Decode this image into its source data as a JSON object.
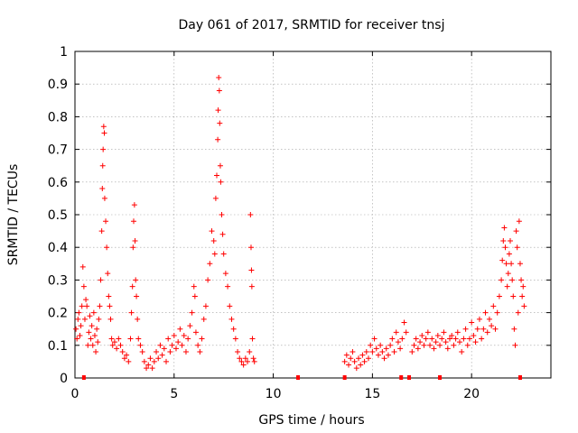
{
  "chart_data": {
    "type": "scatter",
    "title": "Day 061 of 2017, SRMTID for receiver tnsj",
    "xlabel": "GPS time / hours",
    "ylabel": "SRMTID / TECUs",
    "xlim": [
      0,
      24
    ],
    "ylim": [
      0,
      1
    ],
    "xticks": [
      0,
      5,
      10,
      15,
      20
    ],
    "xtick_labels": [
      "0",
      "5",
      "10",
      "15",
      "20"
    ],
    "yticks": [
      0,
      0.1,
      0.2,
      0.3,
      0.4,
      0.5,
      0.6,
      0.7,
      0.8,
      0.9,
      1
    ],
    "ytick_labels": [
      "0",
      "0.1",
      "0.2",
      "0.3",
      "0.4",
      "0.5",
      "0.6",
      "0.7",
      "0.8",
      "0.9",
      "1"
    ],
    "grid": true,
    "marker": "+",
    "color": "#ff0000",
    "series": [
      {
        "name": "SRMTID",
        "points": [
          [
            0.05,
            0.15
          ],
          [
            0.1,
            0.12
          ],
          [
            0.15,
            0.18
          ],
          [
            0.2,
            0.2
          ],
          [
            0.25,
            0.13
          ],
          [
            0.3,
            0.16
          ],
          [
            0.35,
            0.22
          ],
          [
            0.4,
            0.34
          ],
          [
            0.45,
            0.28
          ],
          [
            0.5,
            0.18
          ],
          [
            0.55,
            0.24
          ],
          [
            0.6,
            0.22
          ],
          [
            0.65,
            0.1
          ],
          [
            0.7,
            0.14
          ],
          [
            0.75,
            0.19
          ],
          [
            0.8,
            0.12
          ],
          [
            0.85,
            0.16
          ],
          [
            0.9,
            0.1
          ],
          [
            0.95,
            0.2
          ],
          [
            1.0,
            0.13
          ],
          [
            1.05,
            0.08
          ],
          [
            1.1,
            0.15
          ],
          [
            1.15,
            0.11
          ],
          [
            1.2,
            0.18
          ],
          [
            1.25,
            0.22
          ],
          [
            1.3,
            0.3
          ],
          [
            1.35,
            0.45
          ],
          [
            1.38,
            0.58
          ],
          [
            1.4,
            0.65
          ],
          [
            1.42,
            0.7
          ],
          [
            1.45,
            0.77
          ],
          [
            1.48,
            0.75
          ],
          [
            1.5,
            0.55
          ],
          [
            1.55,
            0.48
          ],
          [
            1.6,
            0.4
          ],
          [
            1.65,
            0.32
          ],
          [
            1.7,
            0.25
          ],
          [
            1.75,
            0.22
          ],
          [
            1.8,
            0.18
          ],
          [
            1.85,
            0.12
          ],
          [
            1.9,
            0.1
          ],
          [
            2.0,
            0.11
          ],
          [
            2.1,
            0.09
          ],
          [
            2.2,
            0.12
          ],
          [
            2.3,
            0.1
          ],
          [
            2.4,
            0.08
          ],
          [
            2.5,
            0.06
          ],
          [
            2.6,
            0.07
          ],
          [
            2.7,
            0.05
          ],
          [
            2.8,
            0.12
          ],
          [
            2.85,
            0.2
          ],
          [
            2.9,
            0.28
          ],
          [
            2.93,
            0.4
          ],
          [
            2.96,
            0.48
          ],
          [
            3.0,
            0.53
          ],
          [
            3.03,
            0.42
          ],
          [
            3.06,
            0.3
          ],
          [
            3.1,
            0.25
          ],
          [
            3.15,
            0.18
          ],
          [
            3.2,
            0.12
          ],
          [
            3.3,
            0.1
          ],
          [
            3.4,
            0.08
          ],
          [
            3.5,
            0.05
          ],
          [
            3.6,
            0.03
          ],
          [
            3.7,
            0.04
          ],
          [
            3.8,
            0.06
          ],
          [
            3.9,
            0.03
          ],
          [
            4.0,
            0.05
          ],
          [
            4.1,
            0.08
          ],
          [
            4.2,
            0.06
          ],
          [
            4.3,
            0.1
          ],
          [
            4.4,
            0.07
          ],
          [
            4.5,
            0.09
          ],
          [
            4.6,
            0.05
          ],
          [
            4.7,
            0.12
          ],
          [
            4.8,
            0.08
          ],
          [
            4.9,
            0.1
          ],
          [
            5.0,
            0.13
          ],
          [
            5.1,
            0.09
          ],
          [
            5.2,
            0.11
          ],
          [
            5.3,
            0.15
          ],
          [
            5.4,
            0.1
          ],
          [
            5.5,
            0.13
          ],
          [
            5.6,
            0.08
          ],
          [
            5.7,
            0.12
          ],
          [
            5.8,
            0.16
          ],
          [
            5.9,
            0.2
          ],
          [
            6.0,
            0.28
          ],
          [
            6.05,
            0.25
          ],
          [
            6.1,
            0.14
          ],
          [
            6.2,
            0.1
          ],
          [
            6.3,
            0.08
          ],
          [
            6.4,
            0.12
          ],
          [
            6.5,
            0.18
          ],
          [
            6.6,
            0.22
          ],
          [
            6.7,
            0.3
          ],
          [
            6.8,
            0.35
          ],
          [
            6.9,
            0.45
          ],
          [
            7.0,
            0.42
          ],
          [
            7.05,
            0.38
          ],
          [
            7.1,
            0.55
          ],
          [
            7.15,
            0.62
          ],
          [
            7.2,
            0.73
          ],
          [
            7.22,
            0.82
          ],
          [
            7.25,
            0.92
          ],
          [
            7.28,
            0.88
          ],
          [
            7.3,
            0.78
          ],
          [
            7.33,
            0.65
          ],
          [
            7.35,
            0.6
          ],
          [
            7.4,
            0.5
          ],
          [
            7.45,
            0.44
          ],
          [
            7.5,
            0.38
          ],
          [
            7.6,
            0.32
          ],
          [
            7.7,
            0.28
          ],
          [
            7.8,
            0.22
          ],
          [
            7.9,
            0.18
          ],
          [
            8.0,
            0.15
          ],
          [
            8.1,
            0.12
          ],
          [
            8.2,
            0.08
          ],
          [
            8.3,
            0.06
          ],
          [
            8.4,
            0.05
          ],
          [
            8.5,
            0.04
          ],
          [
            8.6,
            0.06
          ],
          [
            8.7,
            0.05
          ],
          [
            8.8,
            0.08
          ],
          [
            8.85,
            0.5
          ],
          [
            8.88,
            0.4
          ],
          [
            8.9,
            0.33
          ],
          [
            8.92,
            0.28
          ],
          [
            8.95,
            0.12
          ],
          [
            9.0,
            0.06
          ],
          [
            9.05,
            0.05
          ],
          [
            13.6,
            0.05
          ],
          [
            13.7,
            0.07
          ],
          [
            13.8,
            0.04
          ],
          [
            13.9,
            0.06
          ],
          [
            14.0,
            0.08
          ],
          [
            14.1,
            0.05
          ],
          [
            14.2,
            0.03
          ],
          [
            14.3,
            0.06
          ],
          [
            14.4,
            0.04
          ],
          [
            14.5,
            0.07
          ],
          [
            14.6,
            0.05
          ],
          [
            14.7,
            0.08
          ],
          [
            14.8,
            0.06
          ],
          [
            14.9,
            0.1
          ],
          [
            15.0,
            0.08
          ],
          [
            15.1,
            0.12
          ],
          [
            15.2,
            0.09
          ],
          [
            15.3,
            0.07
          ],
          [
            15.4,
            0.1
          ],
          [
            15.5,
            0.08
          ],
          [
            15.6,
            0.06
          ],
          [
            15.7,
            0.09
          ],
          [
            15.8,
            0.07
          ],
          [
            15.9,
            0.1
          ],
          [
            16.0,
            0.12
          ],
          [
            16.1,
            0.08
          ],
          [
            16.2,
            0.14
          ],
          [
            16.3,
            0.11
          ],
          [
            16.4,
            0.09
          ],
          [
            16.5,
            0.12
          ],
          [
            16.6,
            0.17
          ],
          [
            16.7,
            0.14
          ],
          [
            17.0,
            0.08
          ],
          [
            17.1,
            0.1
          ],
          [
            17.2,
            0.12
          ],
          [
            17.3,
            0.09
          ],
          [
            17.4,
            0.11
          ],
          [
            17.5,
            0.13
          ],
          [
            17.6,
            0.1
          ],
          [
            17.7,
            0.12
          ],
          [
            17.8,
            0.14
          ],
          [
            17.9,
            0.1
          ],
          [
            18.0,
            0.12
          ],
          [
            18.1,
            0.09
          ],
          [
            18.2,
            0.11
          ],
          [
            18.3,
            0.13
          ],
          [
            18.4,
            0.1
          ],
          [
            18.5,
            0.12
          ],
          [
            18.6,
            0.14
          ],
          [
            18.7,
            0.11
          ],
          [
            18.8,
            0.09
          ],
          [
            18.9,
            0.12
          ],
          [
            19.0,
            0.13
          ],
          [
            19.1,
            0.1
          ],
          [
            19.2,
            0.12
          ],
          [
            19.3,
            0.14
          ],
          [
            19.4,
            0.11
          ],
          [
            19.5,
            0.08
          ],
          [
            19.6,
            0.12
          ],
          [
            19.7,
            0.15
          ],
          [
            19.8,
            0.1
          ],
          [
            19.9,
            0.12
          ],
          [
            20.0,
            0.17
          ],
          [
            20.1,
            0.13
          ],
          [
            20.2,
            0.11
          ],
          [
            20.3,
            0.15
          ],
          [
            20.4,
            0.18
          ],
          [
            20.5,
            0.12
          ],
          [
            20.6,
            0.15
          ],
          [
            20.7,
            0.2
          ],
          [
            20.8,
            0.14
          ],
          [
            20.9,
            0.18
          ],
          [
            21.0,
            0.16
          ],
          [
            21.1,
            0.22
          ],
          [
            21.2,
            0.15
          ],
          [
            21.3,
            0.2
          ],
          [
            21.4,
            0.25
          ],
          [
            21.5,
            0.3
          ],
          [
            21.55,
            0.36
          ],
          [
            21.6,
            0.42
          ],
          [
            21.65,
            0.46
          ],
          [
            21.7,
            0.4
          ],
          [
            21.75,
            0.35
          ],
          [
            21.8,
            0.28
          ],
          [
            21.85,
            0.32
          ],
          [
            21.9,
            0.38
          ],
          [
            21.95,
            0.42
          ],
          [
            22.0,
            0.35
          ],
          [
            22.05,
            0.3
          ],
          [
            22.1,
            0.25
          ],
          [
            22.15,
            0.15
          ],
          [
            22.2,
            0.1
          ],
          [
            22.25,
            0.45
          ],
          [
            22.3,
            0.4
          ],
          [
            22.35,
            0.2
          ],
          [
            22.4,
            0.48
          ],
          [
            22.45,
            0.35
          ],
          [
            22.5,
            0.3
          ],
          [
            22.55,
            0.25
          ],
          [
            22.6,
            0.28
          ],
          [
            22.65,
            0.22
          ]
        ]
      }
    ],
    "zero_markers_x": [
      0.45,
      11.25,
      13.6,
      16.45,
      16.85,
      18.4,
      22.45
    ]
  }
}
